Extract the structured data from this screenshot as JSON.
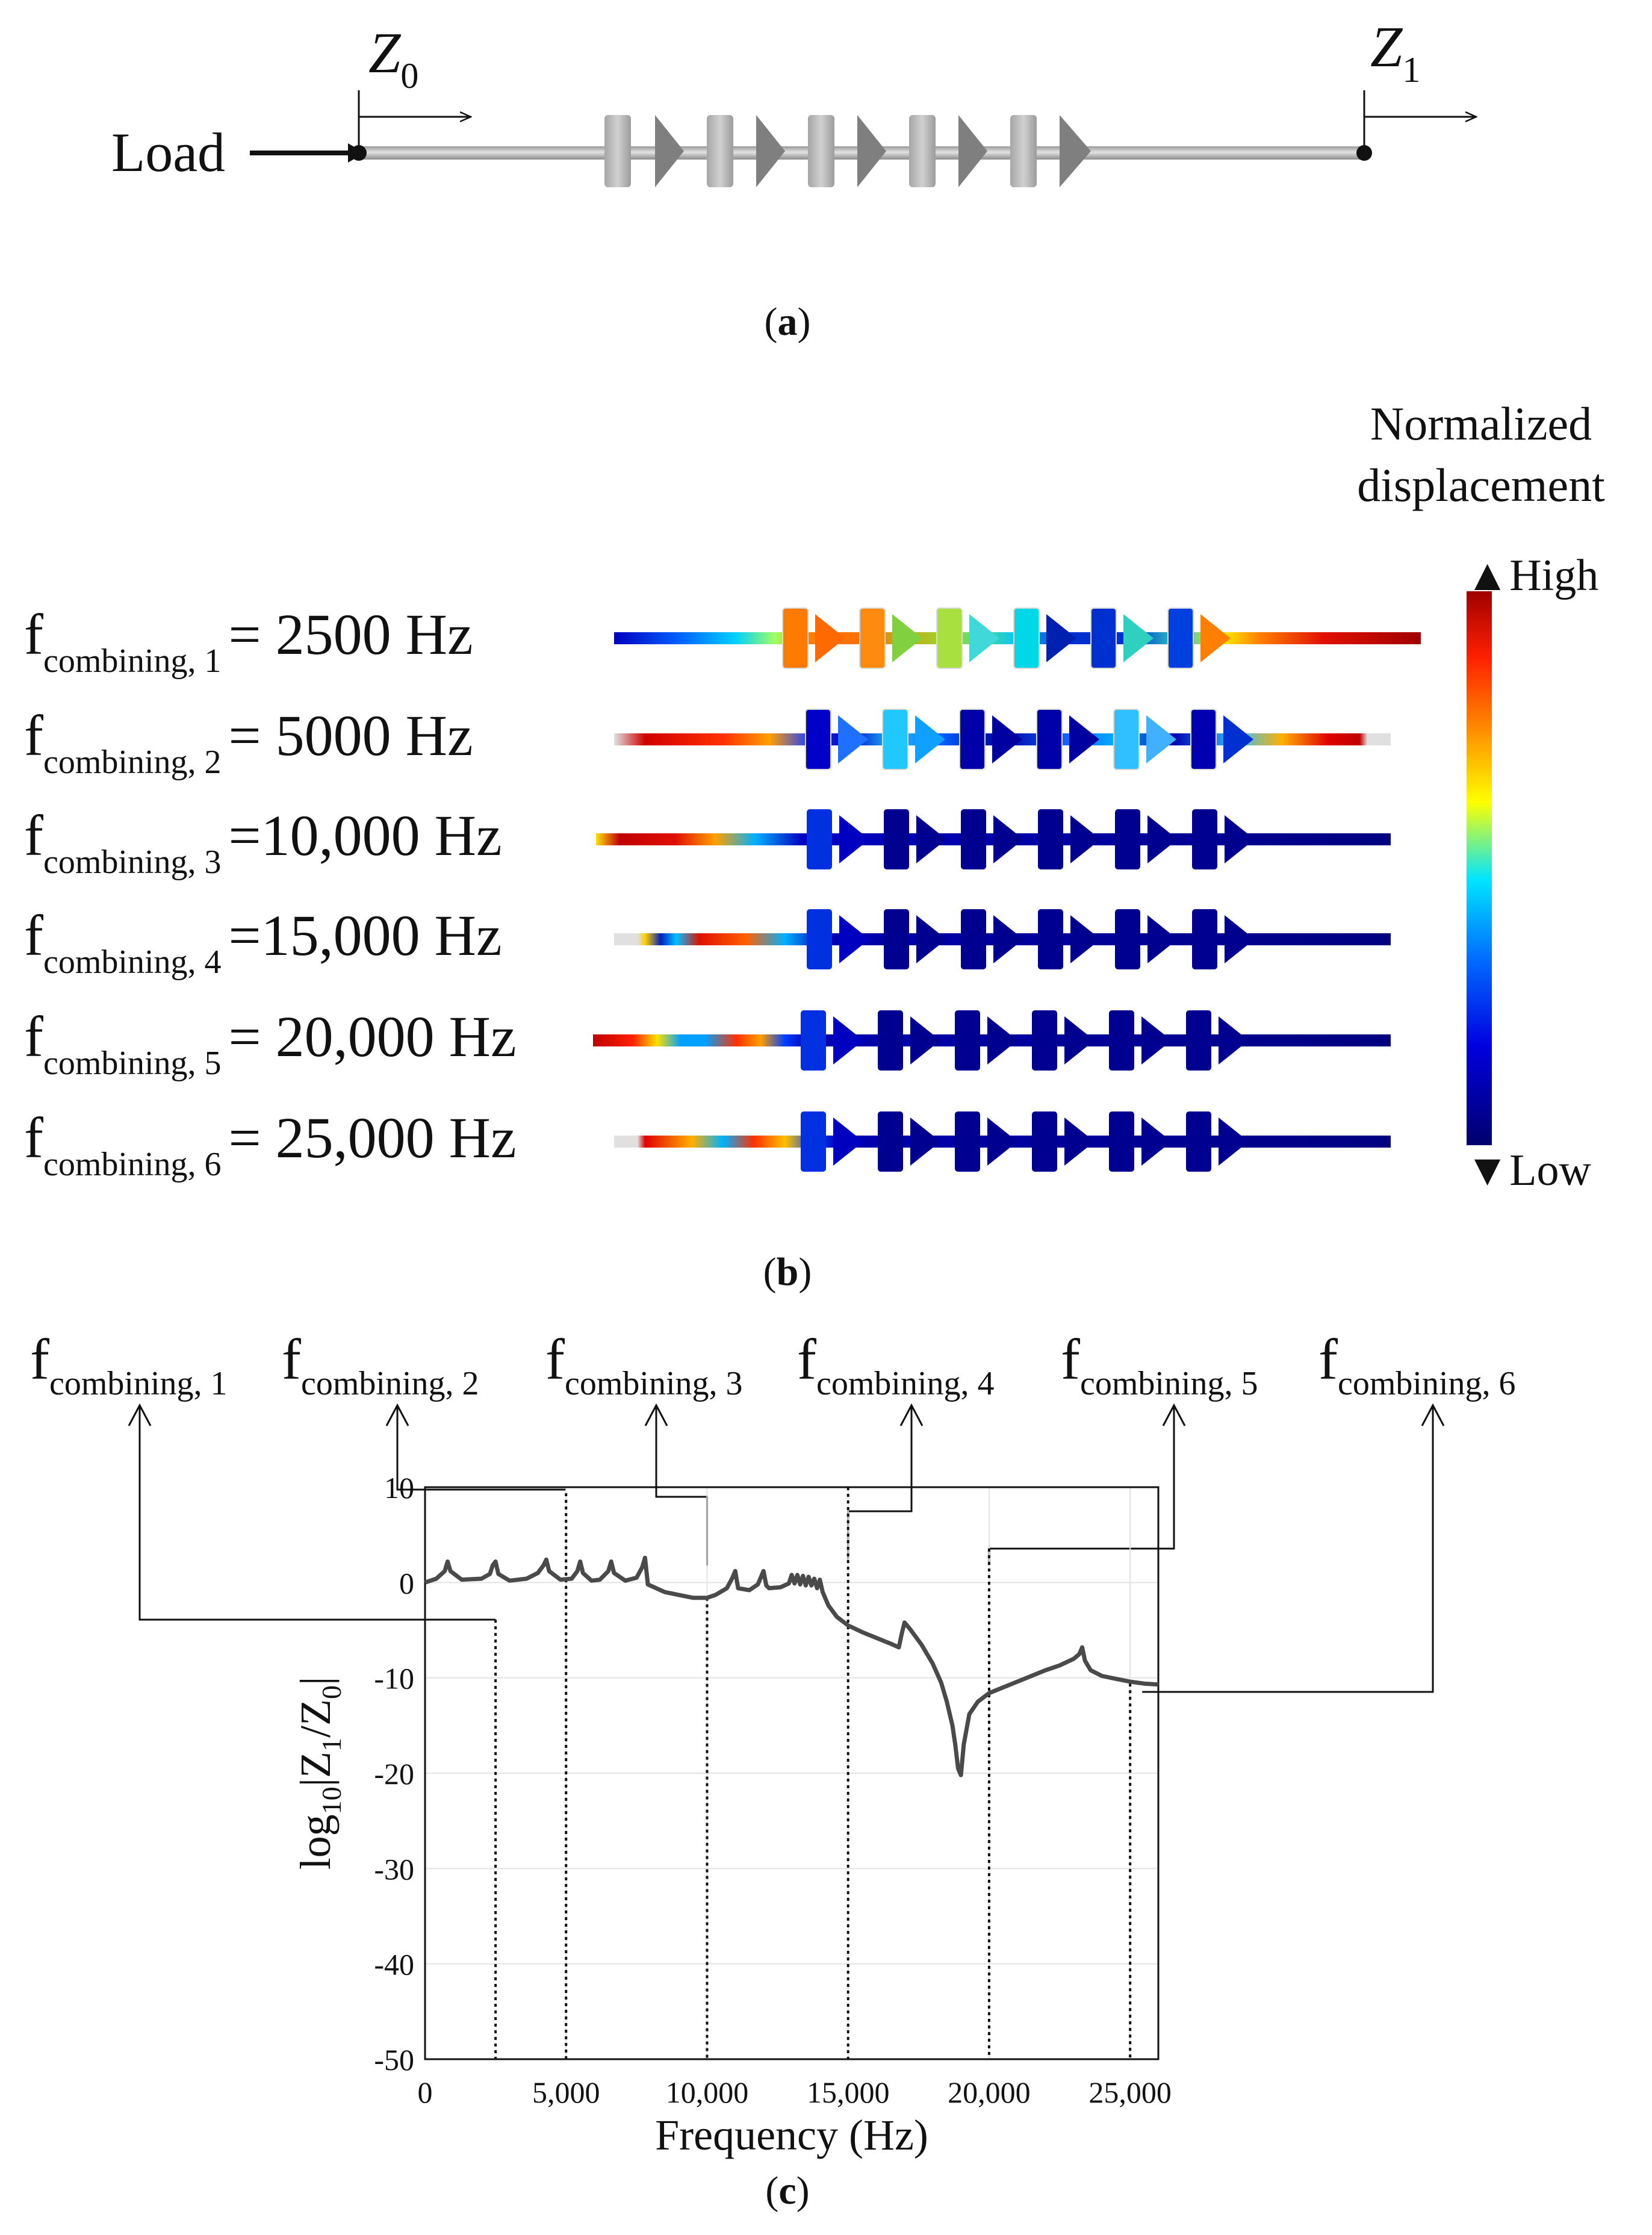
{
  "panel_a": {
    "caption_open": "(",
    "caption_letter": "a",
    "caption_close": ")",
    "load_label": "Load",
    "z0_main": "Z",
    "z0_sub": "0",
    "z1_main": "Z",
    "z1_sub": "1"
  },
  "panel_b": {
    "caption_open": "(",
    "caption_letter": "b",
    "caption_close": ")",
    "legend_title_line1": "Normalized",
    "legend_title_line2": "displacement",
    "legend_high": "▲High",
    "legend_low": "▼Low",
    "rows": [
      {
        "f": "f",
        "sub": "combining, 1",
        "value": "= 2500 Hz"
      },
      {
        "f": "f",
        "sub": "combining, 2",
        "value": "= 5000 Hz"
      },
      {
        "f": "f",
        "sub": "combining, 3",
        "value": "=10,000 Hz"
      },
      {
        "f": "f",
        "sub": "combining, 4",
        "value": "=15,000 Hz"
      },
      {
        "f": "f",
        "sub": "combining, 5",
        "value": "= 20,000 Hz"
      },
      {
        "f": "f",
        "sub": "combining, 6",
        "value": "= 25,000 Hz"
      }
    ]
  },
  "panel_c": {
    "caption_open": "(",
    "caption_letter": "c",
    "caption_close": ")",
    "callouts": [
      {
        "f": "f",
        "sub": "combining, 1"
      },
      {
        "f": "f",
        "sub": "combining, 2"
      },
      {
        "f": "f",
        "sub": "combining, 3"
      },
      {
        "f": "f",
        "sub": "combining, 4"
      },
      {
        "f": "f",
        "sub": "combining, 5"
      },
      {
        "f": "f",
        "sub": "combining, 6"
      }
    ]
  },
  "chart_data": {
    "type": "line",
    "xlabel": "Frequency (Hz)",
    "ylabel_parts": [
      "log",
      "10",
      "|Z",
      "1",
      "/Z",
      "0",
      "|"
    ],
    "xlim": [
      0,
      26000
    ],
    "ylim": [
      -50,
      10
    ],
    "xticks": [
      0,
      5000,
      10000,
      15000,
      20000,
      25000
    ],
    "xtick_labels": [
      "0",
      "5,000",
      "10,000",
      "15,000",
      "20,000",
      "25,000"
    ],
    "yticks": [
      10,
      0,
      -10,
      -20,
      -30,
      -40,
      -50
    ],
    "ytick_labels": [
      "10",
      "0",
      "-10",
      "-20",
      "-30",
      "-40",
      "-50"
    ],
    "combining_frequencies": [
      2500,
      5000,
      10000,
      15000,
      20000,
      25000
    ],
    "series": [
      {
        "name": "log10|Z1/Z0|",
        "x": [
          0,
          400,
          700,
          800,
          900,
          1300,
          2000,
          2300,
          2400,
          2500,
          2600,
          3000,
          3600,
          4000,
          4200,
          4300,
          4400,
          4800,
          5200,
          5400,
          5500,
          5600,
          5900,
          6200,
          6500,
          6600,
          6700,
          7100,
          7500,
          7700,
          7800,
          7900,
          8500,
          9500,
          10000,
          10300,
          10700,
          10900,
          11000,
          11100,
          11500,
          11800,
          12000,
          12100,
          12200,
          12600,
          12900,
          13000,
          13100,
          13200,
          13300,
          13400,
          13500,
          13600,
          13700,
          13800,
          13900,
          14000,
          14100,
          14300,
          14600,
          15000,
          15500,
          16000,
          16500,
          16800,
          16900,
          17000,
          17200,
          17600,
          18000,
          18300,
          18500,
          18700,
          18800,
          18900,
          19000,
          19100,
          19300,
          19600,
          20000,
          20500,
          21000,
          21500,
          22000,
          22500,
          23000,
          23200,
          23300,
          23400,
          23600,
          24000,
          24500,
          25000,
          25500,
          26000
        ],
        "y": [
          0,
          0.4,
          1.2,
          2.2,
          1.2,
          0.3,
          0.4,
          0.9,
          1.8,
          2.2,
          0.9,
          0.2,
          0.4,
          1.0,
          1.8,
          2.4,
          1.2,
          0.3,
          0.4,
          1.2,
          2.2,
          1.0,
          0.2,
          0.3,
          1.2,
          2.2,
          1.0,
          0.2,
          0.5,
          1.6,
          2.6,
          -0.2,
          -1.0,
          -1.6,
          -1.6,
          -1.3,
          -0.6,
          0.5,
          1.2,
          -0.6,
          -0.8,
          -0.2,
          1.2,
          -0.3,
          -0.6,
          -0.5,
          -0.1,
          0.8,
          -0.1,
          0.8,
          -0.2,
          0.7,
          -0.3,
          0.6,
          -0.3,
          0.4,
          -0.6,
          0.3,
          -1.0,
          -2.4,
          -3.6,
          -4.5,
          -5.2,
          -5.8,
          -6.4,
          -6.8,
          -5.4,
          -4.2,
          -4.9,
          -6.5,
          -8.5,
          -10.5,
          -12.5,
          -15,
          -17,
          -19.5,
          -20.2,
          -17,
          -13.8,
          -12.5,
          -11.6,
          -11,
          -10.4,
          -9.8,
          -9.2,
          -8.7,
          -8.0,
          -7.5,
          -6.8,
          -8.2,
          -9.2,
          -9.8,
          -10.1,
          -10.4,
          -10.6,
          -10.7
        ]
      }
    ]
  }
}
